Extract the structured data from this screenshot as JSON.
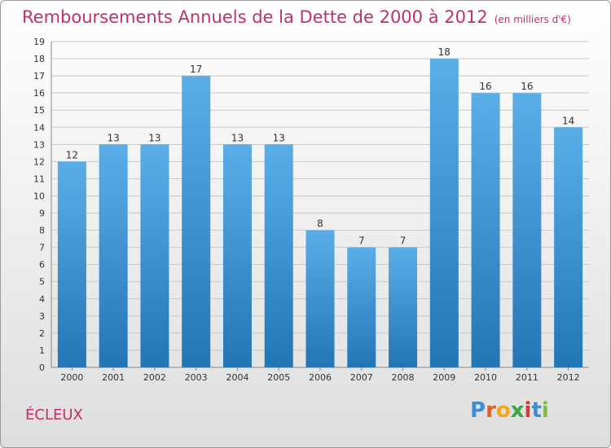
{
  "title": "Remboursements Annuels de la Dette de 2000 à 2012",
  "unit": "(en milliers d'€)",
  "commune": "ÉCLEUX",
  "logo": {
    "text": "Proxiti",
    "letters": [
      "P",
      "r",
      "o",
      "x",
      "i",
      "t",
      "i"
    ],
    "colors": [
      "#3a8fd6",
      "#e0602a",
      "#f3a81c",
      "#3aa547",
      "#d13a3a",
      "#3a8fd6",
      "#7cbf2e"
    ]
  },
  "colors": {
    "title": "#c0306a",
    "bar_top": "#5aaee8",
    "bar_bottom": "#2276b6",
    "grid": "#c8c8c8",
    "axis_text": "#333333"
  },
  "chart_data": {
    "type": "bar",
    "title": "Remboursements Annuels de la Dette de 2000 à 2012",
    "categories": [
      "2000",
      "2001",
      "2002",
      "2003",
      "2004",
      "2005",
      "2006",
      "2007",
      "2008",
      "2009",
      "2010",
      "2011",
      "2012"
    ],
    "values": [
      12,
      13,
      13,
      17,
      13,
      13,
      8,
      7,
      7,
      18,
      16,
      16,
      14
    ],
    "ylim": [
      0,
      19
    ],
    "yticks": [
      0,
      1,
      2,
      3,
      4,
      5,
      6,
      7,
      8,
      9,
      10,
      11,
      12,
      13,
      14,
      15,
      16,
      17,
      18,
      19
    ],
    "grid": true,
    "xlabel": "",
    "ylabel": ""
  }
}
